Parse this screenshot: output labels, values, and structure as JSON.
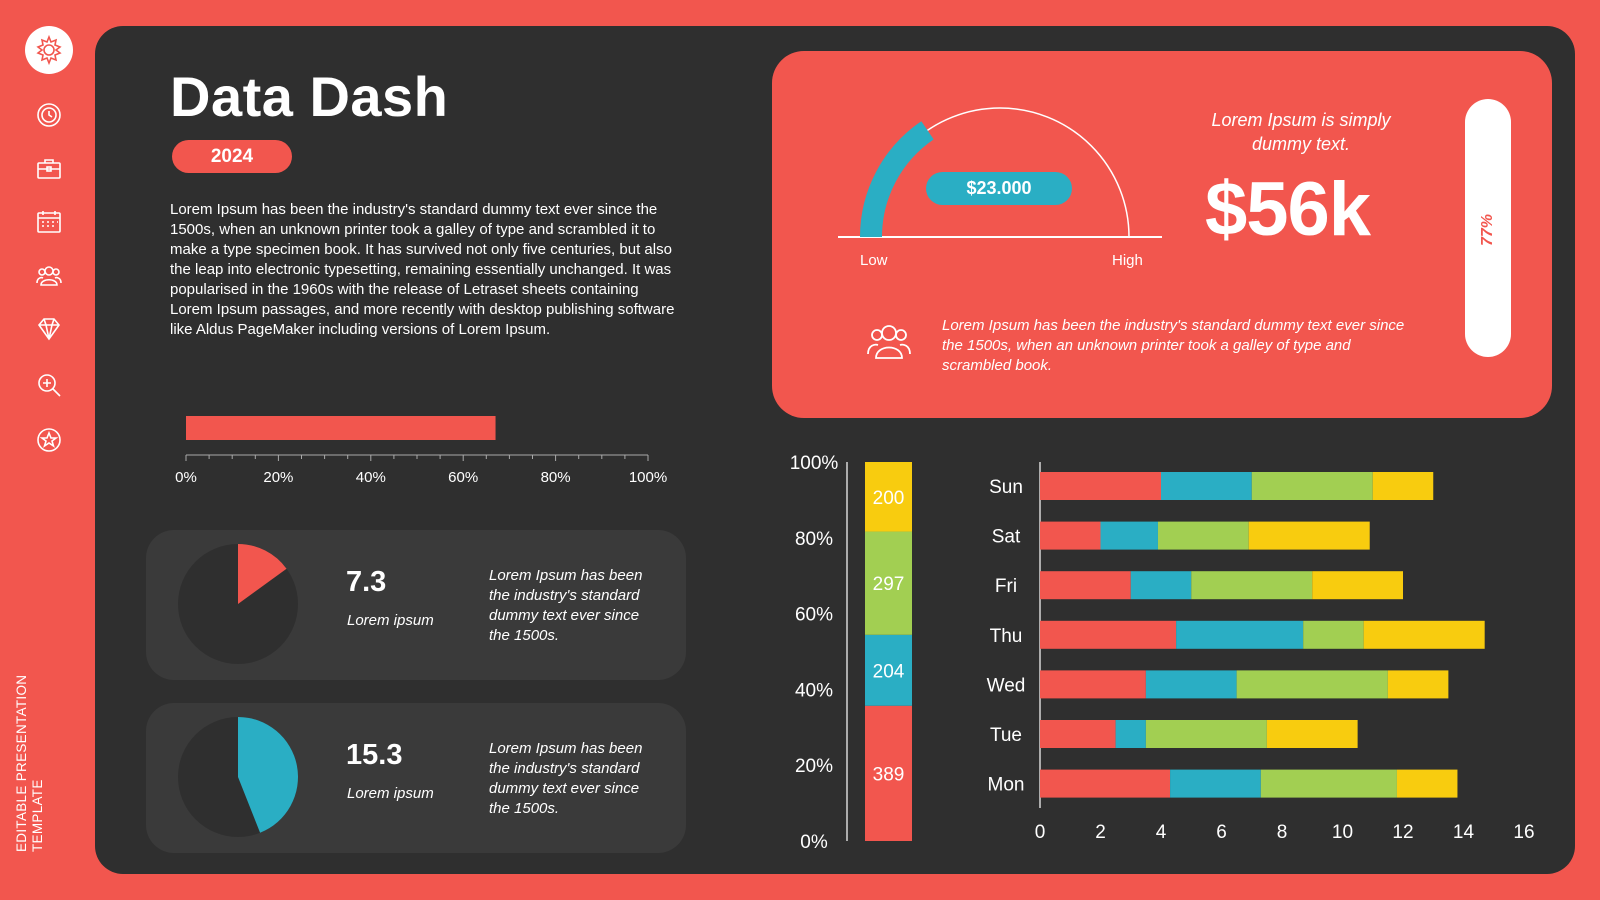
{
  "sidebar": {
    "logo_icon": "gear-flower-icon",
    "items": [
      {
        "name": "clock",
        "icon": "clock-icon"
      },
      {
        "name": "briefcase",
        "icon": "briefcase-icon"
      },
      {
        "name": "calendar",
        "icon": "calendar-icon"
      },
      {
        "name": "people",
        "icon": "people-icon"
      },
      {
        "name": "diamond",
        "icon": "diamond-icon"
      },
      {
        "name": "zoom",
        "icon": "zoom-in-icon"
      },
      {
        "name": "star",
        "icon": "star-icon"
      }
    ],
    "footer_text": "EDITABLE PRESENTATION TEMPLATE"
  },
  "header": {
    "title": "Data Dash",
    "year": "2024",
    "intro": "Lorem Ipsum has been the industry's standard dummy text ever since the 1500s, when an unknown printer took a galley of type and scrambled it to make a type specimen book. It has survived not only five centuries, but also the leap into electronic typesetting, remaining essentially unchanged. It was popularised in the 1960s with the release of Letraset sheets containing Lorem Ipsum passages, and more recently with desktop publishing software like Aldus PageMaker including versions of Lorem Ipsum."
  },
  "colors": {
    "accent": "#f2564e",
    "dark": "#2f2f2f",
    "card": "#3a3a3a",
    "teal": "#2aaec4",
    "green": "#a2cf52",
    "yellow": "#f8cc0f"
  },
  "cards": [
    {
      "value": "7.3",
      "label": "Lorem ipsum",
      "desc": "Lorem Ipsum has been the industry's standard dummy text ever since the 1500s.",
      "pie_fraction": 0.15,
      "color": "#f2564e"
    },
    {
      "value": "15.3",
      "label": "Lorem ipsum",
      "desc": "Lorem Ipsum has been the industry's standard dummy text ever since the 1500s.",
      "pie_fraction": 0.44,
      "color": "#2aaec4"
    }
  ],
  "kpi": {
    "gauge_amount": "$23.000",
    "gauge_low": "Low",
    "gauge_high": "High",
    "gauge_fraction": 0.31,
    "subtitle": "Lorem Ipsum is simply dummy text.",
    "big_value": "$56k",
    "vertical_pct": "77%",
    "vertical_fraction": 0.77,
    "desc": "Lorem Ipsum has been the industry's standard dummy text ever since the 1500s, when an unknown printer took a galley of type and scrambled book."
  },
  "chart_data": [
    {
      "type": "bar",
      "orientation": "horizontal",
      "value_percent": 67,
      "xlim": [
        0,
        100
      ],
      "ticks": [
        "0%",
        "20%",
        "40%",
        "60%",
        "80%",
        "100%"
      ]
    },
    {
      "type": "bar",
      "stacked": true,
      "normalized": true,
      "ylim": [
        0,
        100
      ],
      "ticks": [
        "0%",
        "20%",
        "40%",
        "60%",
        "80%",
        "100%"
      ],
      "segments": [
        {
          "value": 389,
          "label": "389",
          "color": "#f2564e"
        },
        {
          "value": 204,
          "label": "204",
          "color": "#2aaec4"
        },
        {
          "value": 297,
          "label": "297",
          "color": "#a2cf52"
        },
        {
          "value": 200,
          "label": "200",
          "color": "#f8cc0f"
        }
      ]
    },
    {
      "type": "bar",
      "orientation": "horizontal",
      "stacked": true,
      "categories": [
        "Sun",
        "Sat",
        "Fri",
        "Thu",
        "Wed",
        "Tue",
        "Mon"
      ],
      "xlim": [
        0,
        16
      ],
      "ticks": [
        0,
        2,
        4,
        6,
        8,
        10,
        12,
        14,
        16
      ],
      "series_colors": [
        "#f2564e",
        "#2aaec4",
        "#a2cf52",
        "#f8cc0f"
      ],
      "series": [
        {
          "values": [
            4,
            2,
            3,
            4.5,
            3.5,
            2.5,
            4.3
          ]
        },
        {
          "values": [
            3,
            1.9,
            2,
            4.2,
            3,
            1,
            3
          ]
        },
        {
          "values": [
            4,
            3,
            4,
            2,
            5,
            4,
            4.5
          ]
        },
        {
          "values": [
            2,
            4,
            3,
            4,
            2,
            3,
            2
          ]
        }
      ]
    }
  ]
}
